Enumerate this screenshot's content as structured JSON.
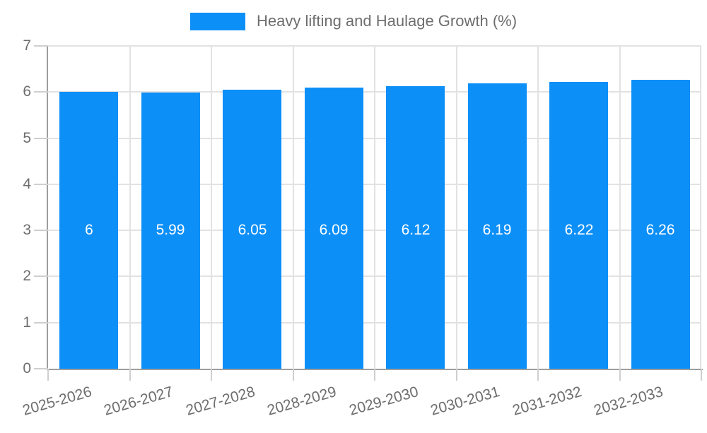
{
  "legend": {
    "label": "Heavy lifting and Haulage Growth (%)"
  },
  "chart_data": {
    "type": "bar",
    "title": "Heavy lifting and Haulage Growth (%)",
    "categories": [
      "2025-2026",
      "2026-2027",
      "2027-2028",
      "2028-2029",
      "2029-2030",
      "2030-2031",
      "2031-2032",
      "2032-2033"
    ],
    "values": [
      6,
      5.99,
      6.05,
      6.09,
      6.12,
      6.19,
      6.22,
      6.26
    ],
    "bar_labels": [
      "6",
      "5.99",
      "6.05",
      "6.09",
      "6.12",
      "6.19",
      "6.22",
      "6.26"
    ],
    "xlabel": "",
    "ylabel": "",
    "ylim": [
      0,
      7
    ],
    "yticks": [
      0,
      1,
      2,
      3,
      4,
      5,
      6,
      7
    ],
    "grid": true,
    "legend_position": "top",
    "bar_color": "#0d8ff8",
    "bar_label_color": "#ffffff",
    "axis_color": "#9e9e9e",
    "gridline_color": "#e2e2e2",
    "tick_text_color": "#6e6e6e",
    "bar_label_anchor_value": 3
  }
}
